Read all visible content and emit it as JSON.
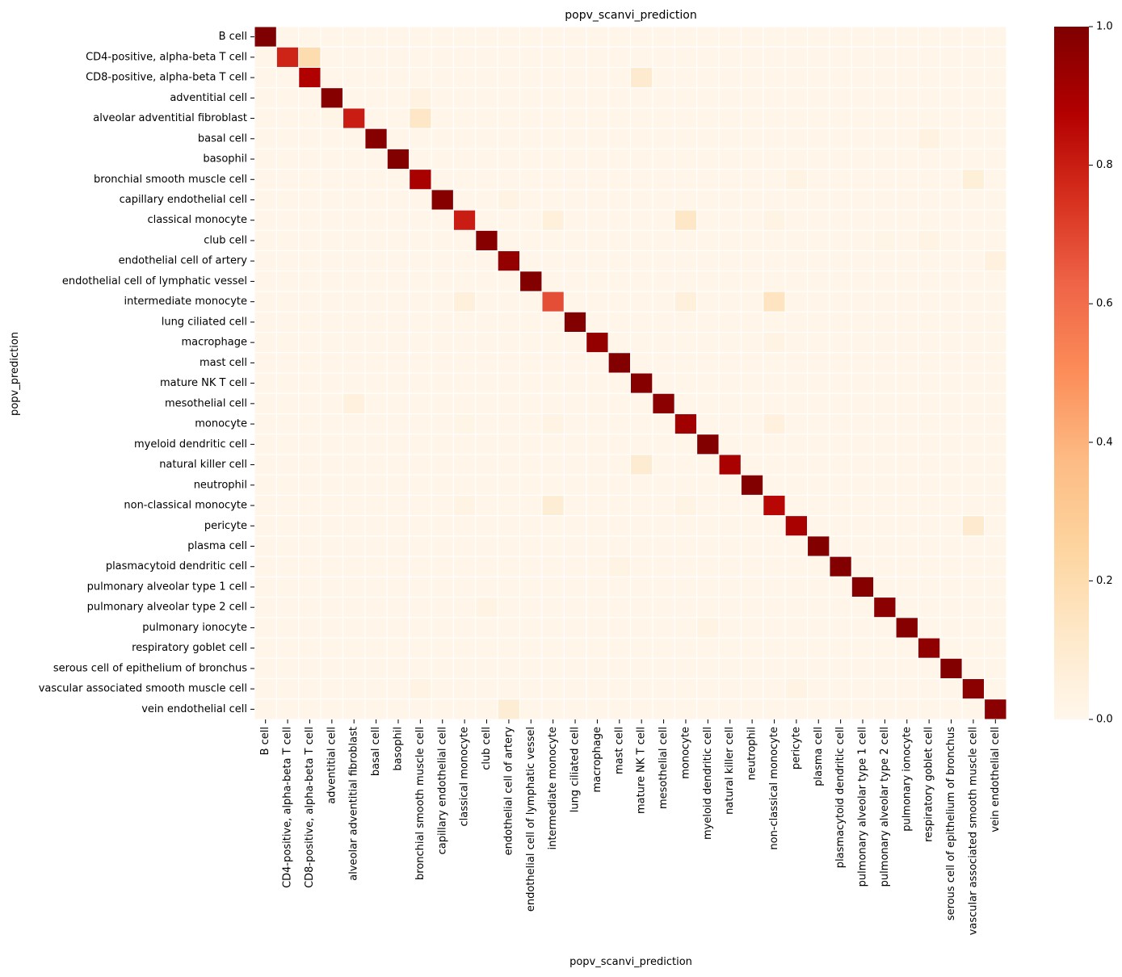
{
  "chart_data": {
    "type": "heatmap",
    "title": "popv_scanvi_prediction",
    "xlabel": "popv_scanvi_prediction",
    "ylabel": "popv_prediction",
    "colormap": "OrRd",
    "colorbar": {
      "range": [
        0.0,
        1.0
      ],
      "ticks": [
        0.0,
        0.2,
        0.4,
        0.6,
        0.8,
        1.0
      ],
      "tick_labels": [
        "0.0",
        "0.2",
        "0.4",
        "0.6",
        "0.8",
        "1.0"
      ]
    },
    "cell_gap_color": "#ffffff",
    "x_categories": [
      "B cell",
      "CD4-positive, alpha-beta T cell",
      "CD8-positive, alpha-beta T cell",
      "adventitial cell",
      "alveolar adventitial fibroblast",
      "basal cell",
      "basophil",
      "bronchial smooth muscle cell",
      "capillary endothelial cell",
      "classical monocyte",
      "club cell",
      "endothelial cell of artery",
      "endothelial cell of lymphatic vessel",
      "intermediate monocyte",
      "lung ciliated cell",
      "macrophage",
      "mast cell",
      "mature NK T cell",
      "mesothelial cell",
      "monocyte",
      "myeloid dendritic cell",
      "natural killer cell",
      "neutrophil",
      "non-classical monocyte",
      "pericyte",
      "plasma cell",
      "plasmacytoid dendritic cell",
      "pulmonary alveolar type 1 cell",
      "pulmonary alveolar type 2 cell",
      "pulmonary ionocyte",
      "respiratory goblet cell",
      "serous cell of epithelium of bronchus",
      "vascular associated smooth muscle cell",
      "vein endothelial cell"
    ],
    "y_categories": [
      "B cell",
      "CD4-positive, alpha-beta T cell",
      "CD8-positive, alpha-beta T cell",
      "adventitial cell",
      "alveolar adventitial fibroblast",
      "basal cell",
      "basophil",
      "bronchial smooth muscle cell",
      "capillary endothelial cell",
      "classical monocyte",
      "club cell",
      "endothelial cell of artery",
      "endothelial cell of lymphatic vessel",
      "intermediate monocyte",
      "lung ciliated cell",
      "macrophage",
      "mast cell",
      "mature NK T cell",
      "mesothelial cell",
      "monocyte",
      "myeloid dendritic cell",
      "natural killer cell",
      "neutrophil",
      "non-classical monocyte",
      "pericyte",
      "plasma cell",
      "plasmacytoid dendritic cell",
      "pulmonary alveolar type 1 cell",
      "pulmonary alveolar type 2 cell",
      "pulmonary ionocyte",
      "respiratory goblet cell",
      "serous cell of epithelium of bronchus",
      "vascular associated smooth muscle cell",
      "vein endothelial cell"
    ],
    "diagonal": [
      1.0,
      0.78,
      0.88,
      0.98,
      0.8,
      0.98,
      0.99,
      0.9,
      0.98,
      0.8,
      0.98,
      0.95,
      0.99,
      0.68,
      0.99,
      0.95,
      0.99,
      0.98,
      0.97,
      0.92,
      0.99,
      0.9,
      0.99,
      0.86,
      0.9,
      0.99,
      0.99,
      0.98,
      0.97,
      0.98,
      0.96,
      0.99,
      0.97,
      0.97
    ],
    "background_value": 0.01,
    "off_diagonal": [
      {
        "row": 1,
        "col": 2,
        "value": 0.2
      },
      {
        "row": 2,
        "col": 17,
        "value": 0.1
      },
      {
        "row": 3,
        "col": 7,
        "value": 0.04
      },
      {
        "row": 4,
        "col": 7,
        "value": 0.13
      },
      {
        "row": 4,
        "col": 3,
        "value": 0.02
      },
      {
        "row": 5,
        "col": 30,
        "value": 0.04
      },
      {
        "row": 7,
        "col": 24,
        "value": 0.03
      },
      {
        "row": 7,
        "col": 32,
        "value": 0.07
      },
      {
        "row": 8,
        "col": 11,
        "value": 0.03
      },
      {
        "row": 9,
        "col": 13,
        "value": 0.06
      },
      {
        "row": 9,
        "col": 19,
        "value": 0.13
      },
      {
        "row": 9,
        "col": 23,
        "value": 0.03
      },
      {
        "row": 10,
        "col": 28,
        "value": 0.02
      },
      {
        "row": 10,
        "col": 30,
        "value": 0.03
      },
      {
        "row": 11,
        "col": 33,
        "value": 0.05
      },
      {
        "row": 13,
        "col": 9,
        "value": 0.06
      },
      {
        "row": 13,
        "col": 19,
        "value": 0.06
      },
      {
        "row": 13,
        "col": 23,
        "value": 0.15
      },
      {
        "row": 15,
        "col": 23,
        "value": 0.03
      },
      {
        "row": 18,
        "col": 4,
        "value": 0.05
      },
      {
        "row": 19,
        "col": 9,
        "value": 0.02
      },
      {
        "row": 19,
        "col": 13,
        "value": 0.03
      },
      {
        "row": 19,
        "col": 23,
        "value": 0.05
      },
      {
        "row": 21,
        "col": 17,
        "value": 0.09
      },
      {
        "row": 23,
        "col": 9,
        "value": 0.03
      },
      {
        "row": 23,
        "col": 13,
        "value": 0.08
      },
      {
        "row": 23,
        "col": 19,
        "value": 0.03
      },
      {
        "row": 24,
        "col": 32,
        "value": 0.1
      },
      {
        "row": 26,
        "col": 16,
        "value": 0.03
      },
      {
        "row": 28,
        "col": 10,
        "value": 0.03
      },
      {
        "row": 29,
        "col": 20,
        "value": 0.03
      },
      {
        "row": 32,
        "col": 7,
        "value": 0.03
      },
      {
        "row": 32,
        "col": 24,
        "value": 0.03
      },
      {
        "row": 33,
        "col": 11,
        "value": 0.08
      }
    ]
  }
}
